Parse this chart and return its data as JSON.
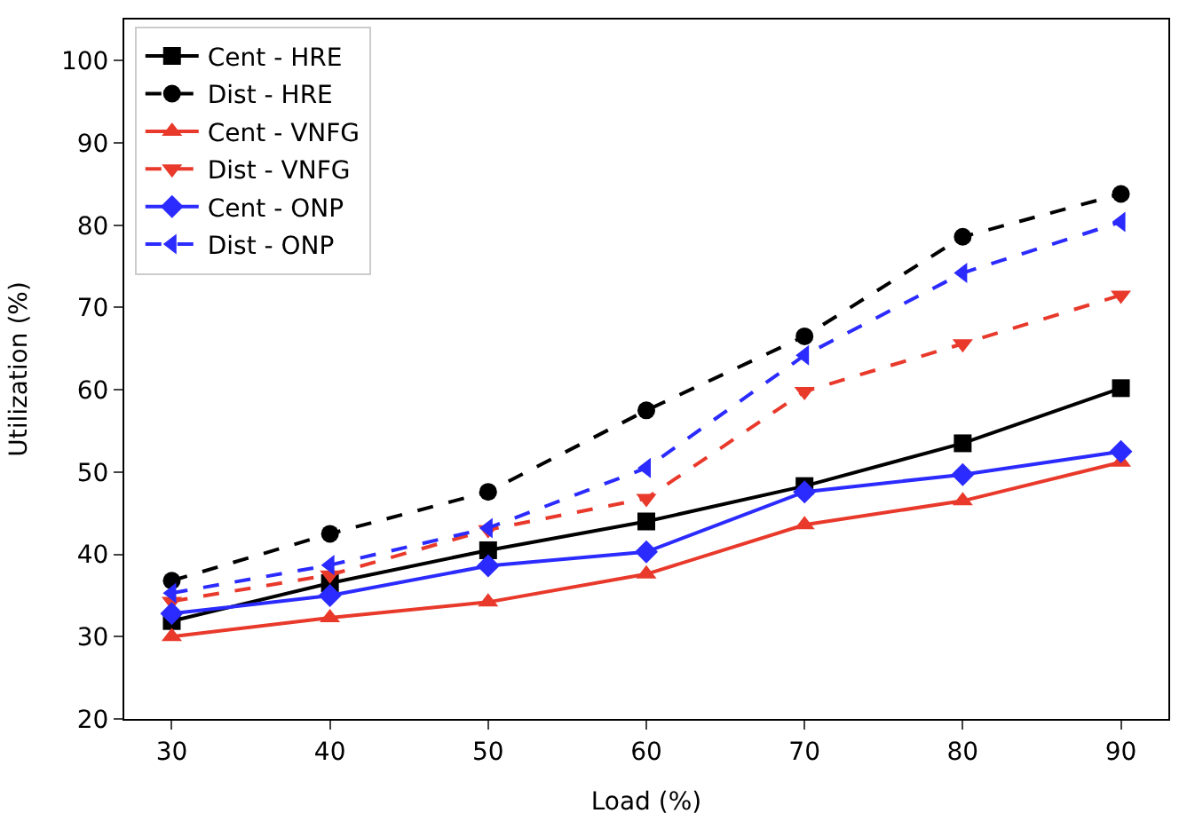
{
  "chart_data": {
    "type": "line",
    "xlabel": "Load (%)",
    "ylabel": "Utilization (%)",
    "x": [
      30,
      40,
      50,
      60,
      70,
      80,
      90
    ],
    "xlim": [
      27,
      93
    ],
    "xticks": [
      30,
      40,
      50,
      60,
      70,
      80,
      90
    ],
    "ylim": [
      20,
      105
    ],
    "yticks": [
      20,
      30,
      40,
      50,
      60,
      70,
      80,
      90,
      100
    ],
    "grid": false,
    "legend": "top left",
    "series": [
      {
        "name": "Cent - HRE",
        "color": "#000000",
        "marker": "square",
        "line_style": "solid",
        "values": [
          31.9,
          36.5,
          40.5,
          44.0,
          48.3,
          53.5,
          60.2
        ]
      },
      {
        "name": "Dist - HRE",
        "color": "#000000",
        "marker": "circle",
        "line_style": "dashed",
        "values": [
          36.8,
          42.5,
          47.6,
          57.5,
          66.5,
          78.6,
          83.8
        ]
      },
      {
        "name": "Cent - VNFG",
        "color": "#e8392b",
        "marker": "triangle",
        "line_style": "solid",
        "values": [
          30.0,
          32.3,
          34.2,
          37.6,
          43.6,
          46.5,
          51.2
        ]
      },
      {
        "name": "Dist - VNFG",
        "color": "#e8392b",
        "marker": "triangle-down",
        "line_style": "dashed",
        "values": [
          34.3,
          37.5,
          43.0,
          46.8,
          59.8,
          65.6,
          71.5
        ]
      },
      {
        "name": "Cent - ONP",
        "color": "#2b2bff",
        "marker": "diamond",
        "line_style": "solid",
        "values": [
          32.8,
          35.0,
          38.6,
          40.3,
          47.6,
          49.7,
          52.5
        ]
      },
      {
        "name": "Dist - ONP",
        "color": "#2b2bff",
        "marker": "triangle-left",
        "line_style": "dashed",
        "values": [
          35.3,
          38.7,
          43.2,
          50.5,
          64.2,
          74.2,
          80.4
        ]
      }
    ]
  }
}
